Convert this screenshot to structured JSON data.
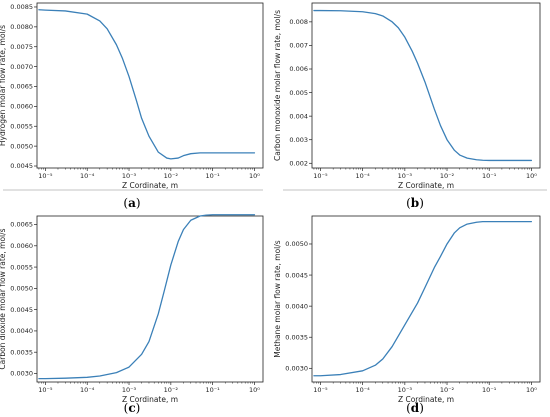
{
  "chart_data": [
    {
      "type": "line",
      "panel_label": "a",
      "xlabel": "Z Cordinate, m",
      "ylabel": "Hydrogen molar flow rate, mol/s",
      "xscale": "log",
      "xlim": [
        6.3e-06,
        1.6
      ],
      "ylim": [
        0.00445,
        0.0086
      ],
      "xticks": [
        "10⁻⁵",
        "10⁻⁴",
        "10⁻³",
        "10⁻²",
        "10⁻¹",
        "10⁰"
      ],
      "yticks": [
        "0.0045",
        "0.0050",
        "0.0055",
        "0.0060",
        "0.0065",
        "0.0070",
        "0.0075",
        "0.0080",
        "0.0085"
      ],
      "series": [
        {
          "color": "#3b80b8",
          "x": [
            7e-06,
            1e-05,
            3e-05,
            0.0001,
            0.0002,
            0.0003,
            0.0005,
            0.0007,
            0.001,
            0.0015,
            0.002,
            0.003,
            0.005,
            0.008,
            0.01,
            0.015,
            0.02,
            0.03,
            0.05,
            0.1,
            0.3,
            1
          ],
          "y": [
            0.00843,
            0.00842,
            0.0084,
            0.00832,
            0.00815,
            0.00795,
            0.00755,
            0.0072,
            0.00675,
            0.00615,
            0.0057,
            0.00525,
            0.00485,
            0.0047,
            0.00468,
            0.0047,
            0.00476,
            0.00481,
            0.00483,
            0.00483,
            0.00483,
            0.00483
          ]
        }
      ]
    },
    {
      "type": "line",
      "panel_label": "b",
      "xlabel": "Z Cordinate, m",
      "ylabel": "Carbon monoxide molar flow rate, mol/s",
      "xscale": "log",
      "xlim": [
        6.3e-06,
        1.6
      ],
      "ylim": [
        0.0018,
        0.0088
      ],
      "xticks": [
        "10⁻⁵",
        "10⁻⁴",
        "10⁻³",
        "10⁻²",
        "10⁻¹",
        "10⁰"
      ],
      "yticks": [
        "0.002",
        "0.003",
        "0.004",
        "0.005",
        "0.006",
        "0.007",
        "0.008"
      ],
      "series": [
        {
          "color": "#3b80b8",
          "x": [
            7e-06,
            1e-05,
            3e-05,
            0.0001,
            0.0002,
            0.0003,
            0.0005,
            0.0007,
            0.001,
            0.0015,
            0.002,
            0.003,
            0.005,
            0.007,
            0.01,
            0.015,
            0.02,
            0.03,
            0.05,
            0.07,
            0.1,
            0.3,
            1
          ],
          "y": [
            0.00848,
            0.00848,
            0.00847,
            0.00843,
            0.00835,
            0.00825,
            0.008,
            0.00775,
            0.00735,
            0.00675,
            0.00625,
            0.00545,
            0.0043,
            0.0036,
            0.003,
            0.00255,
            0.00235,
            0.00222,
            0.00215,
            0.00213,
            0.00212,
            0.00212,
            0.00212
          ]
        }
      ]
    },
    {
      "type": "line",
      "panel_label": "c",
      "xlabel": "Z Cordinate, m",
      "ylabel": "Carbon dioxide molar flow rate, mol/s",
      "xscale": "log",
      "xlim": [
        6.3e-06,
        1.6
      ],
      "ylim": [
        0.0028,
        0.0067
      ],
      "xticks": [
        "10⁻⁵",
        "10⁻⁴",
        "10⁻³",
        "10⁻²",
        "10⁻¹",
        "10⁰"
      ],
      "yticks": [
        "0.0030",
        "0.0035",
        "0.0040",
        "0.0045",
        "0.0050",
        "0.0055",
        "0.0060",
        "0.0065"
      ],
      "series": [
        {
          "color": "#3b80b8",
          "x": [
            7e-06,
            1e-05,
            3e-05,
            0.0001,
            0.0002,
            0.0005,
            0.001,
            0.002,
            0.003,
            0.005,
            0.007,
            0.01,
            0.015,
            0.02,
            0.03,
            0.05,
            0.07,
            0.1,
            0.3,
            1
          ],
          "y": [
            0.00288,
            0.00288,
            0.00289,
            0.00291,
            0.00294,
            0.00302,
            0.00315,
            0.00345,
            0.00375,
            0.0044,
            0.00495,
            0.00555,
            0.0061,
            0.00638,
            0.0066,
            0.0067,
            0.00672,
            0.00673,
            0.00673,
            0.00673
          ]
        }
      ]
    },
    {
      "type": "line",
      "panel_label": "d",
      "xlabel": "Z Cordinate, m",
      "ylabel": "Methane molar flow rate, mol/s",
      "xscale": "log",
      "xlim": [
        6.3e-06,
        1.6
      ],
      "ylim": [
        0.00278,
        0.00545
      ],
      "xticks": [
        "10⁻⁵",
        "10⁻⁴",
        "10⁻³",
        "10⁻²",
        "10⁻¹",
        "10⁰"
      ],
      "yticks": [
        "0.0030",
        "0.0035",
        "0.0040",
        "0.0045",
        "0.0050"
      ],
      "series": [
        {
          "color": "#3b80b8",
          "x": [
            7e-06,
            1e-05,
            3e-05,
            0.0001,
            0.0002,
            0.0003,
            0.0005,
            0.001,
            0.002,
            0.003,
            0.005,
            0.007,
            0.01,
            0.015,
            0.02,
            0.03,
            0.05,
            0.07,
            0.1,
            0.3,
            1
          ],
          "y": [
            0.00288,
            0.00288,
            0.0029,
            0.00296,
            0.00305,
            0.00315,
            0.00335,
            0.0037,
            0.00405,
            0.0043,
            0.00462,
            0.0048,
            0.005,
            0.00518,
            0.00526,
            0.00532,
            0.00535,
            0.00536,
            0.00536,
            0.00536,
            0.00536
          ]
        }
      ]
    }
  ]
}
